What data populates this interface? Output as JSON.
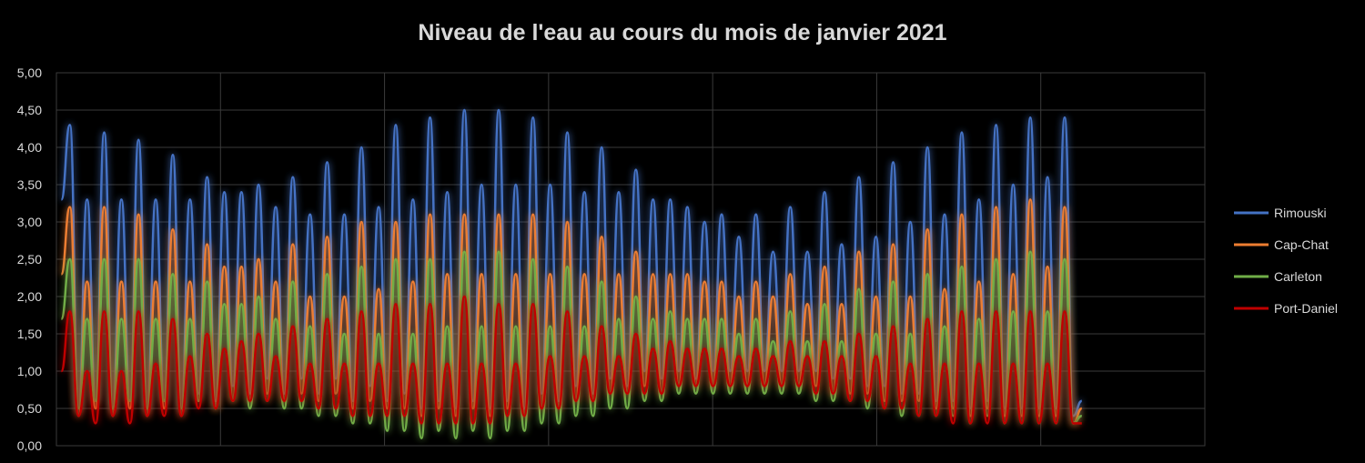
{
  "chart_data": {
    "type": "line",
    "title": "Niveau de l'eau au cours du mois de janvier 2021",
    "xlabel": "",
    "ylabel": "",
    "ylim": [
      0,
      5
    ],
    "y_ticks": [
      "0,00",
      "0,50",
      "1,00",
      "1,50",
      "2,00",
      "2,50",
      "3,00",
      "3,50",
      "4,00",
      "4,50",
      "5,00"
    ],
    "x_range": [
      0,
      7
    ],
    "grid": "both",
    "legend_position": "right",
    "note": "semi-diurnal tide: one high value and one low value per half-cycle, 60 half-cycles; x in chart units (7 vertical gridline bands)",
    "series": [
      {
        "name": "Rimouski",
        "color": "#4472c4",
        "start": 3.3,
        "highs": [
          4.3,
          3.3,
          4.2,
          3.3,
          4.1,
          3.3,
          3.9,
          3.3,
          3.6,
          3.4,
          3.4,
          3.5,
          3.2,
          3.6,
          3.1,
          3.8,
          3.1,
          4.0,
          3.2,
          4.3,
          3.3,
          4.4,
          3.4,
          4.5,
          3.5,
          4.5,
          3.5,
          4.4,
          3.5,
          4.2,
          3.4,
          4.0,
          3.4,
          3.7,
          3.3,
          3.3,
          3.2,
          3.0,
          3.1,
          2.8,
          3.1,
          2.6,
          3.2,
          2.6,
          3.4,
          2.7,
          3.6,
          2.8,
          3.8,
          3.0,
          4.0,
          3.1,
          4.2,
          3.3,
          4.3,
          3.5,
          4.4,
          3.6,
          4.4
        ],
        "lows": [
          0.5,
          0.6,
          0.5,
          0.6,
          0.5,
          0.6,
          0.5,
          0.7,
          0.6,
          0.8,
          0.7,
          0.9,
          0.7,
          0.9,
          0.7,
          0.9,
          0.6,
          0.8,
          0.6,
          0.7,
          0.5,
          0.6,
          0.5,
          0.6,
          0.5,
          0.6,
          0.5,
          0.7,
          0.6,
          0.8,
          0.7,
          0.9,
          0.8,
          1.0,
          0.9,
          1.0,
          0.9,
          1.0,
          1.0,
          1.0,
          1.0,
          1.0,
          1.0,
          1.0,
          0.9,
          0.9,
          0.8,
          0.8,
          0.7,
          0.7,
          0.6,
          0.6,
          0.5,
          0.6,
          0.5,
          0.5,
          0.5,
          0.5,
          0.4
        ],
        "end": 0.6
      },
      {
        "name": "Cap-Chat",
        "color": "#ed7d31",
        "start": 2.3,
        "highs": [
          3.2,
          2.2,
          3.2,
          2.2,
          3.1,
          2.2,
          2.9,
          2.2,
          2.7,
          2.4,
          2.4,
          2.5,
          2.2,
          2.7,
          2.0,
          2.8,
          2.0,
          3.0,
          2.1,
          3.0,
          2.2,
          3.1,
          2.3,
          3.1,
          2.3,
          3.1,
          2.3,
          3.1,
          2.3,
          3.0,
          2.3,
          2.8,
          2.3,
          2.6,
          2.3,
          2.3,
          2.3,
          2.2,
          2.2,
          2.0,
          2.2,
          2.0,
          2.3,
          1.9,
          2.4,
          1.9,
          2.6,
          2.0,
          2.7,
          2.0,
          2.9,
          2.1,
          3.1,
          2.2,
          3.2,
          2.3,
          3.3,
          2.4,
          3.2
        ],
        "lows": [
          0.4,
          0.5,
          0.4,
          0.5,
          0.4,
          0.5,
          0.4,
          0.6,
          0.5,
          0.6,
          0.6,
          0.7,
          0.6,
          0.7,
          0.6,
          0.7,
          0.5,
          0.6,
          0.5,
          0.5,
          0.4,
          0.5,
          0.4,
          0.5,
          0.4,
          0.5,
          0.4,
          0.5,
          0.5,
          0.6,
          0.6,
          0.7,
          0.7,
          0.8,
          0.7,
          0.8,
          0.8,
          0.8,
          0.8,
          0.8,
          0.8,
          0.8,
          0.8,
          0.8,
          0.7,
          0.7,
          0.7,
          0.6,
          0.6,
          0.6,
          0.5,
          0.5,
          0.4,
          0.5,
          0.4,
          0.4,
          0.4,
          0.4,
          0.3
        ],
        "end": 0.5
      },
      {
        "name": "Carleton",
        "color": "#70ad47",
        "start": 1.7,
        "highs": [
          2.5,
          1.7,
          2.5,
          1.7,
          2.5,
          1.7,
          2.3,
          1.7,
          2.2,
          1.9,
          1.9,
          2.0,
          1.7,
          2.2,
          1.6,
          2.3,
          1.5,
          2.4,
          1.5,
          2.5,
          1.5,
          2.5,
          1.6,
          2.6,
          1.6,
          2.6,
          1.6,
          2.5,
          1.6,
          2.4,
          1.6,
          2.2,
          1.7,
          2.0,
          1.7,
          1.8,
          1.7,
          1.7,
          1.7,
          1.5,
          1.7,
          1.4,
          1.8,
          1.4,
          1.9,
          1.4,
          2.1,
          1.5,
          2.2,
          1.5,
          2.3,
          1.6,
          2.4,
          1.7,
          2.5,
          1.8,
          2.6,
          1.8,
          2.5
        ],
        "lows": [
          0.5,
          0.6,
          0.5,
          0.6,
          0.5,
          0.6,
          0.5,
          0.6,
          0.5,
          0.6,
          0.5,
          0.6,
          0.5,
          0.5,
          0.4,
          0.4,
          0.3,
          0.3,
          0.2,
          0.2,
          0.1,
          0.2,
          0.1,
          0.2,
          0.1,
          0.2,
          0.2,
          0.3,
          0.3,
          0.4,
          0.4,
          0.5,
          0.5,
          0.6,
          0.6,
          0.7,
          0.7,
          0.7,
          0.7,
          0.7,
          0.7,
          0.7,
          0.7,
          0.6,
          0.6,
          0.6,
          0.5,
          0.5,
          0.4,
          0.4,
          0.4,
          0.4,
          0.3,
          0.4,
          0.3,
          0.3,
          0.3,
          0.3,
          0.3
        ],
        "end": 0.4
      },
      {
        "name": "Port-Daniel",
        "color": "#c00000",
        "start": 1.0,
        "highs": [
          1.8,
          1.0,
          1.8,
          1.0,
          1.8,
          1.1,
          1.7,
          1.2,
          1.5,
          1.3,
          1.4,
          1.5,
          1.2,
          1.6,
          1.1,
          1.7,
          1.1,
          1.8,
          1.1,
          1.9,
          1.1,
          1.9,
          1.1,
          2.0,
          1.1,
          1.9,
          1.1,
          1.9,
          1.2,
          1.8,
          1.2,
          1.6,
          1.2,
          1.5,
          1.3,
          1.4,
          1.3,
          1.3,
          1.3,
          1.2,
          1.3,
          1.2,
          1.4,
          1.2,
          1.4,
          1.2,
          1.5,
          1.2,
          1.6,
          1.1,
          1.7,
          1.1,
          1.8,
          1.1,
          1.8,
          1.1,
          1.8,
          1.1,
          1.8
        ],
        "lows": [
          0.4,
          0.3,
          0.4,
          0.3,
          0.4,
          0.4,
          0.4,
          0.5,
          0.5,
          0.6,
          0.6,
          0.6,
          0.6,
          0.6,
          0.5,
          0.5,
          0.4,
          0.4,
          0.4,
          0.4,
          0.3,
          0.3,
          0.3,
          0.3,
          0.3,
          0.4,
          0.4,
          0.5,
          0.5,
          0.6,
          0.6,
          0.7,
          0.7,
          0.7,
          0.7,
          0.8,
          0.8,
          0.8,
          0.8,
          0.8,
          0.8,
          0.8,
          0.8,
          0.7,
          0.7,
          0.6,
          0.6,
          0.5,
          0.5,
          0.4,
          0.4,
          0.3,
          0.3,
          0.3,
          0.3,
          0.3,
          0.3,
          0.3,
          0.3
        ],
        "end": 0.3
      }
    ]
  }
}
